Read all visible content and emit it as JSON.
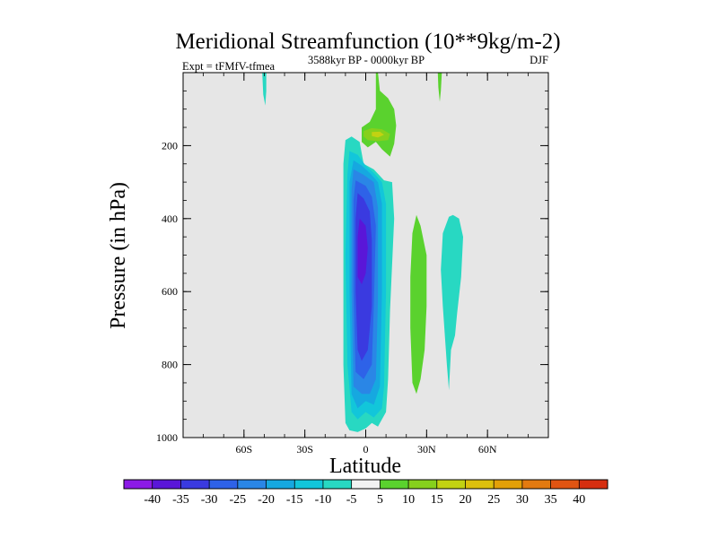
{
  "chart_data": {
    "type": "heatmap",
    "subtype": "filled-contour",
    "title": "Meridional Streamfunction (10**9kg/m-2)",
    "left_subtitle": "Expt = tFMfV-tfmea",
    "center_subtitle": "3588kyr BP - 0000kyr BP",
    "right_subtitle": "DJF",
    "xlabel": "Latitude",
    "ylabel": "Pressure (in hPa)",
    "xlim": [
      -90,
      90
    ],
    "ylim": [
      1000,
      0
    ],
    "x_ticks": [
      {
        "value": -60,
        "label": "60S"
      },
      {
        "value": -30,
        "label": "30S"
      },
      {
        "value": 0,
        "label": "0"
      },
      {
        "value": 30,
        "label": "30N"
      },
      {
        "value": 60,
        "label": "60N"
      }
    ],
    "y_ticks": [
      {
        "value": 200,
        "label": "200"
      },
      {
        "value": 400,
        "label": "400"
      },
      {
        "value": 600,
        "label": "600"
      },
      {
        "value": 800,
        "label": "800"
      },
      {
        "value": 1000,
        "label": "1000"
      }
    ],
    "background_color": "#e6e6e6",
    "colorbar": {
      "labels": [
        "-40",
        "-35",
        "-30",
        "-25",
        "-20",
        "-15",
        "-10",
        "-5",
        "5",
        "10",
        "15",
        "20",
        "25",
        "30",
        "35",
        "40"
      ],
      "colors": [
        "#8c1ae6",
        "#5a16d8",
        "#3a3ae0",
        "#2e62e8",
        "#2a86e6",
        "#16a8e0",
        "#12c6da",
        "#28d8c2",
        "#f2f2f2",
        "#5ad22e",
        "#86d01c",
        "#c2d212",
        "#dcc00c",
        "#e2a008",
        "#e27a10",
        "#e05412",
        "#d62e10"
      ]
    },
    "features": [
      {
        "name": "negative-cell",
        "description": "strong negative overturning cell",
        "lat_range": [
          -8,
          10
        ],
        "p_range": [
          180,
          980
        ],
        "min_value": -35
      },
      {
        "name": "positive-cell-upper",
        "description": "positive cell near tropopause",
        "lat_range": [
          -2,
          14
        ],
        "p_range": [
          0,
          230
        ],
        "max_value": 15
      },
      {
        "name": "positive-cell-mid",
        "description": "positive band north of equator",
        "lat_range": [
          22,
          30
        ],
        "p_range": [
          390,
          880
        ],
        "max_value": 10
      },
      {
        "name": "negative-band-north",
        "description": "weak negative band",
        "lat_range": [
          40,
          48
        ],
        "p_range": [
          390,
          870
        ],
        "min_value": -10
      },
      {
        "name": "negative-streak-upper-south",
        "lat_range": [
          -50,
          -48
        ],
        "p_range": [
          0,
          90
        ],
        "min_value": -10
      },
      {
        "name": "positive-streak-upper-north",
        "lat_range": [
          36,
          38
        ],
        "p_range": [
          0,
          80
        ],
        "max_value": 5
      }
    ]
  }
}
